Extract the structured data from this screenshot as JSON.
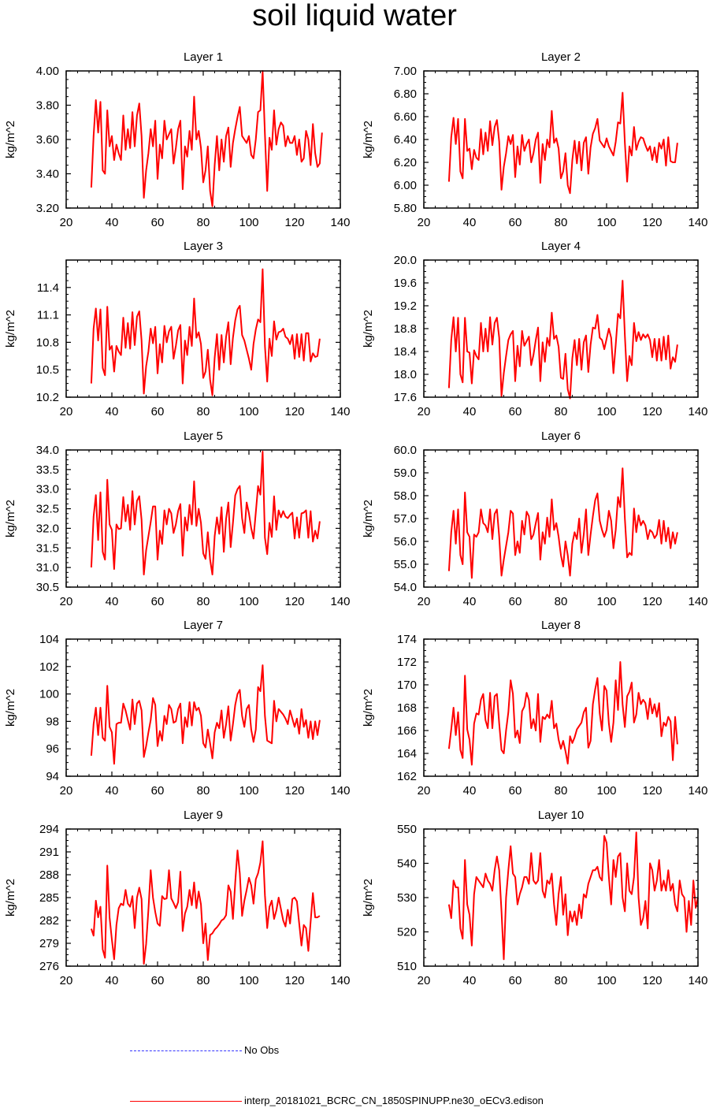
{
  "title": "soil liquid water",
  "legend": {
    "no_obs_label": "No Obs",
    "no_obs_color": "#3333ff",
    "model_label": "interp_20181021_BCRC_CN_1850SPINUPP.ne30_oECv3.edison",
    "model_color": "#ff0000"
  },
  "chart_data": [
    {
      "type": "line",
      "title": "Layer 1",
      "ylabel": "kg/m^2",
      "xlim": [
        20,
        140
      ],
      "xticks": [
        20,
        40,
        60,
        80,
        100,
        120,
        140
      ],
      "ylim": [
        3.2,
        4.0
      ],
      "yticks": [
        "3.20",
        "3.40",
        "3.60",
        "3.80",
        "4.00"
      ],
      "x_start": 31,
      "values": [
        3.32,
        3.62,
        3.83,
        3.64,
        3.82,
        3.42,
        3.4,
        3.77,
        3.56,
        3.62,
        3.48,
        3.57,
        3.52,
        3.48,
        3.74,
        3.54,
        3.66,
        3.55,
        3.76,
        3.56,
        3.74,
        3.81,
        3.62,
        3.26,
        3.42,
        3.52,
        3.66,
        3.56,
        3.71,
        3.37,
        3.57,
        3.49,
        3.71,
        3.6,
        3.63,
        3.66,
        3.46,
        3.55,
        3.66,
        3.71,
        3.31,
        3.56,
        3.5,
        3.65,
        3.54,
        3.85,
        3.6,
        3.65,
        3.55,
        3.35,
        3.42,
        3.56,
        3.3,
        3.21,
        3.45,
        3.62,
        3.42,
        3.6,
        3.47,
        3.62,
        3.67,
        3.44,
        3.58,
        3.66,
        3.73,
        3.79,
        3.62,
        3.6,
        3.58,
        3.62,
        3.51,
        3.49,
        3.6,
        3.76,
        3.77,
        4.0,
        3.63,
        3.3,
        3.61,
        3.54,
        3.77,
        3.57,
        3.66,
        3.7,
        3.68,
        3.56,
        3.62,
        3.58,
        3.58,
        3.62,
        3.51,
        3.6,
        3.47,
        3.49,
        3.65,
        3.6,
        3.45,
        3.69,
        3.52,
        3.44,
        3.46,
        3.64
      ]
    },
    {
      "type": "line",
      "title": "Layer 2",
      "ylabel": "kg/m^2",
      "xlim": [
        20,
        140
      ],
      "xticks": [
        20,
        40,
        60,
        80,
        100,
        120,
        140
      ],
      "ylim": [
        5.8,
        7.0
      ],
      "yticks": [
        "5.80",
        "6.00",
        "6.20",
        "6.40",
        "6.60",
        "6.80",
        "7.00"
      ],
      "x_start": 31,
      "values": [
        6.03,
        6.42,
        6.59,
        6.36,
        6.58,
        6.12,
        6.06,
        6.58,
        6.3,
        6.32,
        6.14,
        6.31,
        6.24,
        6.22,
        6.49,
        6.27,
        6.46,
        6.3,
        6.56,
        6.35,
        6.51,
        6.57,
        6.38,
        5.96,
        6.16,
        6.28,
        6.43,
        6.36,
        6.44,
        6.07,
        6.34,
        6.18,
        6.44,
        6.3,
        6.36,
        6.4,
        6.2,
        6.28,
        6.4,
        6.46,
        6.02,
        6.36,
        6.22,
        6.4,
        6.33,
        6.65,
        6.37,
        6.41,
        6.32,
        6.06,
        6.12,
        6.28,
        6.0,
        5.93,
        6.22,
        6.39,
        6.19,
        6.38,
        6.13,
        6.37,
        6.42,
        6.1,
        6.33,
        6.45,
        6.5,
        6.58,
        6.39,
        6.36,
        6.33,
        6.41,
        6.34,
        6.3,
        6.26,
        6.38,
        6.55,
        6.54,
        6.81,
        6.37,
        6.03,
        6.34,
        6.26,
        6.51,
        6.31,
        6.38,
        6.42,
        6.41,
        6.35,
        6.3,
        6.34,
        6.22,
        6.33,
        6.2,
        6.37,
        6.32,
        6.4,
        6.17,
        6.42,
        6.21,
        6.2,
        6.2,
        6.37
      ]
    },
    {
      "type": "line",
      "title": "Layer 3",
      "ylabel": "kg/m^2",
      "xlim": [
        20,
        140
      ],
      "xticks": [
        20,
        40,
        60,
        80,
        100,
        120,
        140
      ],
      "ylim": [
        10.2,
        11.7
      ],
      "yticks": [
        "10.2",
        "10.5",
        "10.8",
        "11.1",
        "11.4"
      ],
      "x_start": 31,
      "values": [
        10.35,
        10.95,
        11.17,
        10.82,
        11.16,
        10.52,
        10.44,
        11.19,
        10.72,
        10.76,
        10.48,
        10.76,
        10.7,
        10.66,
        11.07,
        10.74,
        11.01,
        10.73,
        11.13,
        10.77,
        11.08,
        11.14,
        10.82,
        10.24,
        10.54,
        10.7,
        10.95,
        10.79,
        10.97,
        10.46,
        10.78,
        10.58,
        10.98,
        10.8,
        10.92,
        10.97,
        10.62,
        10.76,
        10.93,
        10.99,
        10.35,
        10.82,
        10.66,
        10.97,
        10.76,
        11.28,
        10.85,
        10.91,
        10.78,
        10.41,
        10.48,
        10.72,
        10.39,
        10.22,
        10.63,
        10.89,
        10.5,
        10.88,
        10.58,
        10.86,
        11.02,
        10.56,
        10.85,
        11.04,
        11.16,
        11.2,
        10.88,
        10.82,
        10.72,
        10.62,
        10.5,
        10.78,
        10.94,
        11.05,
        11.02,
        11.6,
        10.76,
        10.37,
        10.84,
        10.65,
        11.03,
        10.83,
        10.91,
        10.92,
        10.95,
        10.86,
        10.84,
        10.78,
        10.88,
        10.62,
        10.89,
        10.64,
        10.89,
        10.6,
        10.9,
        10.9,
        10.59,
        10.68,
        10.64,
        10.65,
        10.84
      ]
    },
    {
      "type": "line",
      "title": "Layer 4",
      "ylabel": "kg/m^2",
      "xlim": [
        20,
        140
      ],
      "xticks": [
        20,
        40,
        60,
        80,
        100,
        120,
        140
      ],
      "ylim": [
        17.6,
        20.0
      ],
      "yticks": [
        "17.6",
        "18.0",
        "18.4",
        "18.8",
        "19.2",
        "19.6",
        "20.0"
      ],
      "x_start": 31,
      "values": [
        17.76,
        18.6,
        19.0,
        18.4,
        18.99,
        18.0,
        17.86,
        18.99,
        18.4,
        18.38,
        17.84,
        18.42,
        18.32,
        18.26,
        18.9,
        18.4,
        18.8,
        18.4,
        19.0,
        18.52,
        18.9,
        18.99,
        18.64,
        17.62,
        18.02,
        18.32,
        18.6,
        18.7,
        18.76,
        17.88,
        18.5,
        18.14,
        18.76,
        18.5,
        18.58,
        18.66,
        18.16,
        18.34,
        18.6,
        18.82,
        17.88,
        18.56,
        18.22,
        18.64,
        18.5,
        19.08,
        18.62,
        18.68,
        18.48,
        17.94,
        17.92,
        18.36,
        17.74,
        17.58,
        18.28,
        18.6,
        18.16,
        18.62,
        18.08,
        18.56,
        18.68,
        18.04,
        18.52,
        18.82,
        18.8,
        19.04,
        18.64,
        18.6,
        18.44,
        18.62,
        18.8,
        18.64,
        18.02,
        18.52,
        19.06,
        18.98,
        19.64,
        18.68,
        17.88,
        18.32,
        18.16,
        18.9,
        18.58,
        18.74,
        18.6,
        18.7,
        18.64,
        18.7,
        18.6,
        18.3,
        18.62,
        18.24,
        18.62,
        18.24,
        18.66,
        18.26,
        18.68,
        18.1,
        18.3,
        18.22,
        18.52
      ]
    },
    {
      "type": "line",
      "title": "Layer 5",
      "ylabel": "kg/m^2",
      "xlim": [
        20,
        140
      ],
      "xticks": [
        20,
        40,
        60,
        80,
        100,
        120,
        140
      ],
      "ylim": [
        30.5,
        34.0
      ],
      "yticks": [
        "30.5",
        "31.0",
        "31.5",
        "32.0",
        "32.5",
        "33.0",
        "33.5",
        "34.0"
      ],
      "x_start": 31,
      "values": [
        31.0,
        32.3,
        32.85,
        31.7,
        32.92,
        31.4,
        31.2,
        33.24,
        32.1,
        31.96,
        30.96,
        32.1,
        31.98,
        32.0,
        32.8,
        32.18,
        32.6,
        31.96,
        32.95,
        32.1,
        32.7,
        32.82,
        32.22,
        30.82,
        31.44,
        31.8,
        32.16,
        32.56,
        32.56,
        31.2,
        31.94,
        31.6,
        32.46,
        32.1,
        32.5,
        32.38,
        31.88,
        32.1,
        32.44,
        32.62,
        31.3,
        32.28,
        31.94,
        32.6,
        32.1,
        33.2,
        32.06,
        32.5,
        32.14,
        31.36,
        31.22,
        31.9,
        31.2,
        30.82,
        31.8,
        32.28,
        31.86,
        32.54,
        31.4,
        32.24,
        32.66,
        31.52,
        32.14,
        32.84,
        33.0,
        33.08,
        32.26,
        31.88,
        32.66,
        32.38,
        32.0,
        31.74,
        32.4,
        33.08,
        32.86,
        33.96,
        31.76,
        31.34,
        32.14,
        31.78,
        32.82,
        31.96,
        32.46,
        32.28,
        32.44,
        32.3,
        32.26,
        32.34,
        32.4,
        31.74,
        32.28,
        31.76,
        32.38,
        32.4,
        32.46,
        31.76,
        32.44,
        31.66,
        31.94,
        31.74,
        32.18
      ]
    },
    {
      "type": "line",
      "title": "Layer 6",
      "ylabel": "kg/m^2",
      "xlim": [
        20,
        140
      ],
      "xticks": [
        20,
        40,
        60,
        80,
        100,
        120,
        140
      ],
      "ylim": [
        54.0,
        60.0
      ],
      "yticks": [
        "54.0",
        "55.0",
        "56.0",
        "57.0",
        "58.0",
        "59.0",
        "60.0"
      ],
      "x_start": 31,
      "values": [
        54.7,
        56.4,
        57.34,
        55.9,
        57.4,
        55.4,
        55.0,
        58.14,
        56.4,
        56.2,
        54.4,
        56.3,
        56.2,
        56.4,
        57.4,
        56.8,
        56.7,
        56.4,
        57.4,
        56.1,
        57.2,
        57.4,
        56.2,
        54.5,
        55.2,
        55.8,
        56.4,
        57.34,
        57.22,
        55.4,
        56.0,
        55.5,
        56.9,
        56.3,
        57.3,
        57.1,
        56.1,
        56.3,
        56.8,
        57.24,
        55.2,
        56.4,
        55.9,
        57.04,
        56.2,
        57.84,
        56.5,
        56.8,
        56.2,
        55.4,
        54.9,
        56.0,
        55.4,
        54.5,
        55.9,
        56.4,
        56.1,
        57.0,
        55.5,
        56.3,
        57.4,
        55.4,
        56.3,
        57.1,
        57.8,
        58.1,
        56.9,
        56.5,
        56.2,
        56.5,
        57.34,
        56.9,
        55.7,
        56.5,
        57.94,
        57.5,
        59.2,
        57.0,
        55.3,
        55.5,
        55.4,
        57.44,
        56.4,
        57.14,
        56.7,
        56.9,
        56.7,
        56.1,
        56.5,
        56.4,
        56.14,
        56.3,
        56.94,
        55.9,
        56.9,
        56.0,
        56.6,
        55.7,
        56.4,
        55.9,
        56.4
      ]
    },
    {
      "type": "line",
      "title": "Layer 7",
      "ylabel": "kg/m^2",
      "xlim": [
        20,
        140
      ],
      "xticks": [
        20,
        40,
        60,
        80,
        100,
        120,
        140
      ],
      "ylim": [
        94,
        104
      ],
      "yticks": [
        "94",
        "96",
        "98",
        "100",
        "102",
        "104"
      ],
      "x_start": 31,
      "values": [
        95.5,
        97.8,
        99.0,
        97.0,
        99.0,
        96.8,
        96.6,
        100.6,
        97.6,
        97.2,
        94.9,
        97.8,
        97.9,
        97.9,
        99.3,
        98.8,
        98.1,
        97.4,
        99.6,
        97.8,
        99.3,
        99.5,
        98.8,
        95.4,
        96.2,
        97.2,
        98.1,
        99.7,
        99.2,
        96.2,
        97.3,
        96.6,
        98.4,
        97.8,
        99.2,
        98.9,
        97.9,
        98.0,
        98.9,
        99.3,
        96.4,
        98.3,
        97.6,
        99.4,
        97.7,
        99.4,
        98.8,
        99.0,
        98.4,
        96.4,
        96.1,
        97.4,
        96.4,
        95.3,
        97.2,
        97.9,
        97.5,
        98.8,
        96.8,
        97.8,
        99.1,
        96.6,
        97.8,
        99.2,
        100.0,
        100.3,
        98.4,
        97.6,
        98.9,
        99.2,
        97.4,
        96.5,
        97.4,
        100.5,
        100.2,
        102.1,
        98.4,
        96.6,
        96.5,
        96.4,
        99.5,
        98.0,
        98.9,
        98.7,
        98.5,
        98.2,
        97.8,
        98.8,
        98.2,
        97.6,
        98.2,
        97.1,
        98.9,
        97.6,
        98.1,
        96.8,
        98.0,
        96.7,
        98.0,
        97.0,
        98.1
      ]
    },
    {
      "type": "line",
      "title": "Layer 8",
      "ylabel": "kg/m^2",
      "xlim": [
        20,
        140
      ],
      "xticks": [
        20,
        40,
        60,
        80,
        100,
        120,
        140
      ],
      "ylim": [
        162,
        174
      ],
      "yticks": [
        "162",
        "164",
        "166",
        "168",
        "170",
        "172",
        "174"
      ],
      "x_start": 31,
      "values": [
        164.4,
        166.1,
        168.0,
        165.6,
        167.6,
        164.3,
        163.6,
        170.8,
        166.1,
        165.2,
        163.0,
        166.6,
        167.5,
        167.4,
        168.7,
        169.2,
        166.9,
        166.2,
        169.3,
        166.2,
        169.0,
        169.2,
        166.6,
        164.3,
        164.0,
        166.0,
        167.6,
        170.4,
        169.2,
        165.4,
        166.0,
        164.9,
        167.7,
        168.1,
        169.3,
        168.7,
        166.2,
        167.0,
        166.0,
        169.2,
        165.0,
        167.2,
        167.0,
        167.4,
        167.1,
        168.6,
        166.2,
        166.6,
        165.2,
        164.4,
        165.1,
        164.2,
        163.1,
        165.5,
        164.9,
        165.4,
        166.1,
        166.4,
        166.7,
        167.6,
        168.0,
        164.5,
        165.1,
        168.3,
        169.6,
        170.6,
        167.5,
        166.0,
        169.9,
        169.5,
        166.6,
        165.0,
        166.7,
        170.4,
        167.8,
        172.0,
        168.3,
        166.3,
        169.0,
        169.4,
        170.2,
        166.7,
        167.4,
        169.3,
        168.3,
        168.7,
        168.4,
        167.0,
        168.8,
        167.5,
        168.3,
        167.2,
        168.4,
        165.5,
        166.7,
        166.4,
        167.2,
        166.8,
        163.4,
        167.2,
        164.8
      ]
    },
    {
      "type": "line",
      "title": "Layer 9",
      "ylabel": "kg/m^2",
      "xlim": [
        20,
        140
      ],
      "xticks": [
        20,
        40,
        60,
        80,
        100,
        120,
        140
      ],
      "ylim": [
        276,
        294
      ],
      "yticks": [
        "276",
        "279",
        "282",
        "285",
        "288",
        "291",
        "294"
      ],
      "x_start": 31,
      "values": [
        280.9,
        280.0,
        284.6,
        282.4,
        283.8,
        278.2,
        277.1,
        289.2,
        282.4,
        279.5,
        276.9,
        281.4,
        283.6,
        284.2,
        284.0,
        286.0,
        284.2,
        283.8,
        285.2,
        281.0,
        285.0,
        286.3,
        284.8,
        276.3,
        278.9,
        283.4,
        288.6,
        285.0,
        283.1,
        281.6,
        281.3,
        285.2,
        284.8,
        284.9,
        288.6,
        284.9,
        284.3,
        283.6,
        284.4,
        288.4,
        280.6,
        282.9,
        283.8,
        286.0,
        284.0,
        287.0,
        283.6,
        285.8,
        284.1,
        279.0,
        281.6,
        276.8,
        280.1,
        280.3,
        280.8,
        281.1,
        281.5,
        282.0,
        282.2,
        282.7,
        286.6,
        285.8,
        282.2,
        287.0,
        291.2,
        288.2,
        282.6,
        284.6,
        286.0,
        287.6,
        286.6,
        284.2,
        287.4,
        288.2,
        289.6,
        292.4,
        285.3,
        281.0,
        283.8,
        284.6,
        282.2,
        283.3,
        285.0,
        283.5,
        282.0,
        281.2,
        283.4,
        281.6,
        284.8,
        285.0,
        284.5,
        281.6,
        278.7,
        281.4,
        281.0,
        278.0,
        281.8,
        285.6,
        282.4,
        282.4,
        282.6
      ]
    },
    {
      "type": "line",
      "title": "Layer 10",
      "ylabel": "kg/m^2",
      "xlim": [
        20,
        140
      ],
      "xticks": [
        20,
        40,
        60,
        80,
        100,
        120,
        140
      ],
      "ylim": [
        510,
        550
      ],
      "yticks": [
        "510",
        "520",
        "530",
        "540",
        "550"
      ],
      "x_start": 31,
      "values": [
        528,
        524,
        535,
        533,
        533,
        521,
        518,
        541,
        528,
        525,
        516,
        531,
        536,
        535,
        534,
        533,
        537,
        535,
        534,
        532,
        538,
        542,
        538,
        526,
        512,
        530,
        538,
        545,
        537,
        536,
        528,
        531,
        533,
        536,
        536,
        534,
        543,
        535,
        534,
        535,
        543,
        532,
        530,
        535,
        534,
        537,
        528,
        522,
        531,
        536,
        525,
        531,
        519,
        526,
        523,
        526,
        522,
        528,
        524,
        531,
        530,
        534,
        536,
        538,
        538,
        539,
        536,
        535,
        548,
        546,
        536,
        528,
        541,
        536,
        542,
        543,
        530,
        526,
        540,
        532,
        531,
        536,
        549,
        530,
        522,
        524,
        529,
        521,
        540,
        538,
        532,
        535,
        541,
        532,
        535,
        532,
        538,
        532,
        534,
        528,
        526,
        535,
        531,
        530,
        520,
        529,
        522,
        535,
        527,
        530
      ]
    }
  ]
}
